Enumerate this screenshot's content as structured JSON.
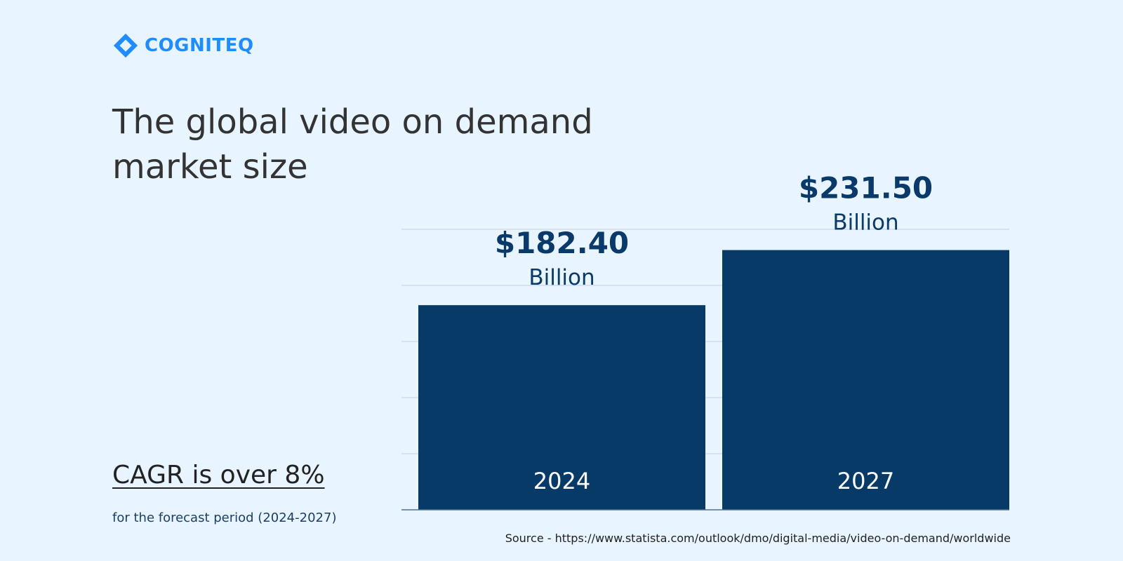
{
  "brand": {
    "name": "COGNITEQ",
    "color": "#1f8dff",
    "icon": "cogniteq-logo-icon"
  },
  "headline": "The global video on demand market size",
  "cagr_text": "CAGR is over 8%",
  "period_text": "for the forecast period (2024-2027)",
  "source_text": "Source - https://www.statista.com/outlook/dmo/digital-media/video-on-demand/worldwide",
  "colors": {
    "background": "#e8f4ff",
    "bar": "#083a68",
    "grid": "#cfdcea",
    "axis": "#51718f"
  },
  "chart_data": {
    "type": "bar",
    "categories": [
      "2024",
      "2027"
    ],
    "values": [
      182.4,
      231.5
    ],
    "value_labels": [
      "$182.40",
      "$231.50"
    ],
    "unit_label": "Billion",
    "title": "",
    "xlabel": "",
    "ylabel": "",
    "ylim": [
      0,
      250
    ],
    "grid": true,
    "legend": "none"
  }
}
